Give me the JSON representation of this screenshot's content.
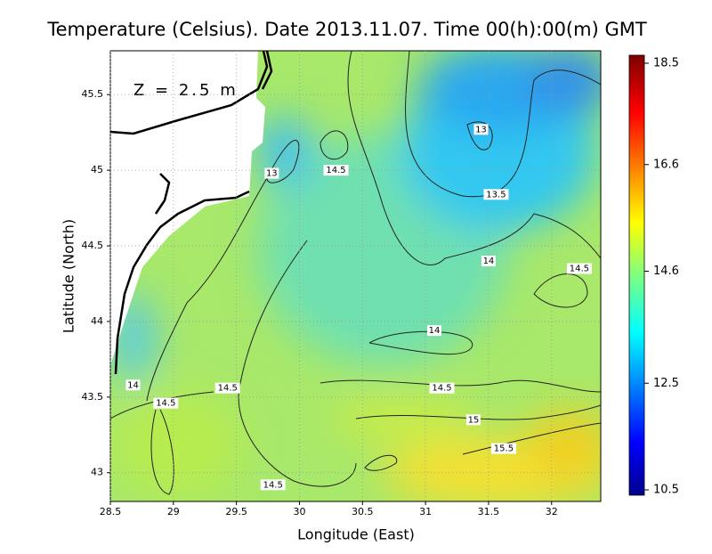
{
  "chart_data": {
    "type": "contour-map",
    "title": "Temperature (Celsius). Date 2013.11.07. Time 00(h):00(m) GMT",
    "annotation": "Z = 2.5 m",
    "x_label": "Longitude (East)",
    "y_label": "Latitude (North)",
    "xlim": [
      28.5,
      32.39
    ],
    "ylim": [
      42.81,
      45.79
    ],
    "xticks": [
      28.5,
      29,
      29.5,
      30,
      30.5,
      31,
      31.5,
      32
    ],
    "yticks": [
      43,
      43.5,
      44,
      44.5,
      45,
      45.5
    ],
    "grid": true,
    "colorbar": {
      "lim": [
        10.5,
        18.5
      ],
      "ticks": [
        10.5,
        12.5,
        14.6,
        16.6,
        18.5
      ]
    },
    "contour_labels": [
      {
        "lon": 31.44,
        "lat": 45.27,
        "value": 13
      },
      {
        "lon": 29.78,
        "lat": 44.98,
        "value": 13
      },
      {
        "lon": 30.29,
        "lat": 45.0,
        "value": 14.5
      },
      {
        "lon": 31.56,
        "lat": 44.84,
        "value": 13.5
      },
      {
        "lon": 31.5,
        "lat": 44.4,
        "value": 14
      },
      {
        "lon": 32.22,
        "lat": 44.35,
        "value": 14.5
      },
      {
        "lon": 31.07,
        "lat": 43.94,
        "value": 14
      },
      {
        "lon": 31.13,
        "lat": 43.56,
        "value": 14.5
      },
      {
        "lon": 31.38,
        "lat": 43.35,
        "value": 15
      },
      {
        "lon": 31.62,
        "lat": 43.16,
        "value": 15.5
      },
      {
        "lon": 29.43,
        "lat": 43.56,
        "value": 14.5
      },
      {
        "lon": 28.68,
        "lat": 43.58,
        "value": 14
      },
      {
        "lon": 28.94,
        "lat": 43.46,
        "value": 14.5
      },
      {
        "lon": 29.79,
        "lat": 42.92,
        "value": 14.5
      }
    ]
  }
}
